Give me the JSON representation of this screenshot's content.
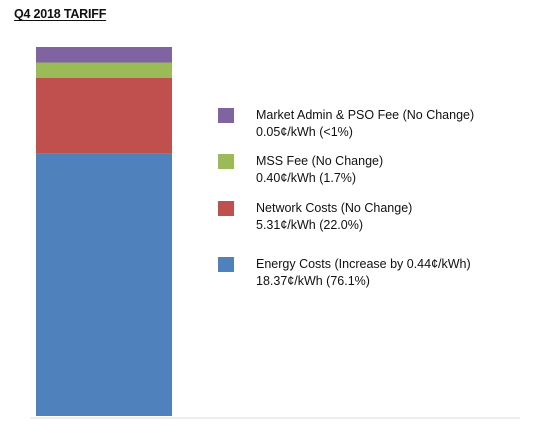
{
  "chart_data": {
    "type": "bar",
    "stacked": true,
    "title": "Q4 2018 TARIFF",
    "xlabel": "",
    "ylabel": "",
    "unit": "¢/kWh",
    "series": [
      {
        "name": "Energy Costs (Increase by 0.44¢/kWh)",
        "value": 18.37,
        "value_label": "18.37¢/kWh (76.1%)",
        "percent": 76.1,
        "color": "#4f81bd"
      },
      {
        "name": "Network Costs (No Change)",
        "value": 5.31,
        "value_label": "5.31¢/kWh (22.0%)",
        "percent": 22.0,
        "color": "#c0504d"
      },
      {
        "name": "MSS Fee (No Change)",
        "value": 0.4,
        "value_label": "0.40¢/kWh (1.7%)",
        "percent": 1.7,
        "color": "#9bbb59"
      },
      {
        "name": "Market Admin & PSO Fee (No Change)",
        "value": 0.05,
        "value_label": "0.05¢/kWh (<1%)",
        "percent": 0.2,
        "color": "#8064a2"
      }
    ],
    "legend_placement": "right",
    "grid": false
  }
}
